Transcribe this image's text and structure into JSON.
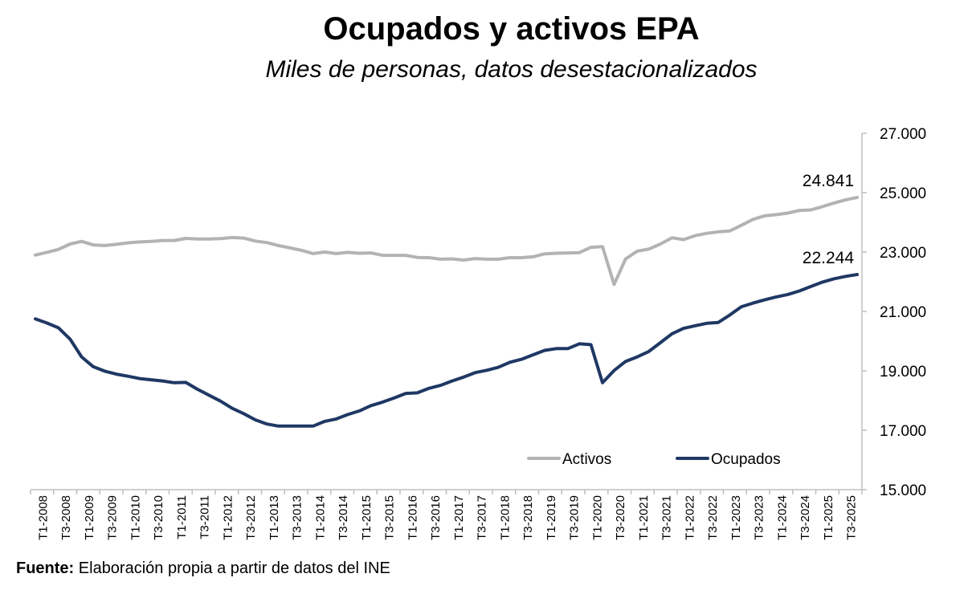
{
  "chart_data": {
    "type": "line",
    "title": "Ocupados y activos EPA",
    "subtitle": "Miles de personas, datos desestacionalizados",
    "ylim": [
      15000,
      27000
    ],
    "y_ticks": [
      "15.000",
      "17.000",
      "19.000",
      "21.000",
      "23.000",
      "25.000",
      "27.000"
    ],
    "y_tick_values": [
      15000,
      17000,
      19000,
      21000,
      23000,
      25000,
      27000
    ],
    "x_labels": [
      "T1-2008",
      "T3-2008",
      "T1-2009",
      "T3-2009",
      "T1-2010",
      "T3-2010",
      "T1-2011",
      "T3-2011",
      "T1-2012",
      "T3-2012",
      "T1-2013",
      "T3-2013",
      "T1-2014",
      "T3-2014",
      "T1-2015",
      "T3-2015",
      "T1-2016",
      "T3-2016",
      "T1-2017",
      "T3-2017",
      "T1-2018",
      "T3-2018",
      "T1-2019",
      "T3-2019",
      "T1-2020",
      "T3-2020",
      "T1-2021",
      "T3-2021",
      "T1-2022",
      "T3-2022",
      "T1-2023",
      "T3-2023",
      "T1-2024",
      "T3-2024",
      "T1-2025",
      "T3-2025"
    ],
    "legend": [
      "Activos",
      "Ocupados"
    ],
    "series": [
      {
        "name": "Activos",
        "color": "#b3b3b3",
        "end_label": "24.841",
        "values": [
          22900,
          22990,
          23090,
          23270,
          23360,
          23240,
          23220,
          23260,
          23310,
          23340,
          23360,
          23390,
          23390,
          23460,
          23440,
          23440,
          23450,
          23490,
          23470,
          23370,
          23320,
          23220,
          23140,
          23060,
          22950,
          23000,
          22950,
          22990,
          22960,
          22970,
          22890,
          22890,
          22890,
          22820,
          22810,
          22760,
          22770,
          22730,
          22780,
          22760,
          22760,
          22810,
          22810,
          22840,
          22940,
          22960,
          22970,
          22980,
          23160,
          23180,
          21910,
          22770,
          23030,
          23100,
          23270,
          23480,
          23420,
          23550,
          23630,
          23680,
          23710,
          23900,
          24100,
          24220,
          24260,
          24310,
          24400,
          24420,
          24530,
          24650,
          24760,
          24841
        ]
      },
      {
        "name": "Ocupados",
        "color": "#1f3864",
        "end_label": "22.244",
        "values": [
          20750,
          20610,
          20450,
          20070,
          19470,
          19140,
          18990,
          18890,
          18820,
          18740,
          18700,
          18660,
          18600,
          18610,
          18380,
          18180,
          17980,
          17740,
          17560,
          17350,
          17210,
          17140,
          17140,
          17140,
          17140,
          17300,
          17380,
          17530,
          17650,
          17830,
          17950,
          18090,
          18240,
          18260,
          18410,
          18510,
          18660,
          18790,
          18940,
          19020,
          19120,
          19290,
          19390,
          19540,
          19690,
          19750,
          19750,
          19910,
          19880,
          18600,
          19010,
          19320,
          19470,
          19650,
          19950,
          20250,
          20430,
          20520,
          20600,
          20630,
          20880,
          21160,
          21280,
          21390,
          21490,
          21570,
          21690,
          21840,
          21990,
          22100,
          22180,
          22244
        ]
      }
    ]
  },
  "source": {
    "label": "Fuente:",
    "text": "Elaboración propia a partir de datos del INE"
  }
}
